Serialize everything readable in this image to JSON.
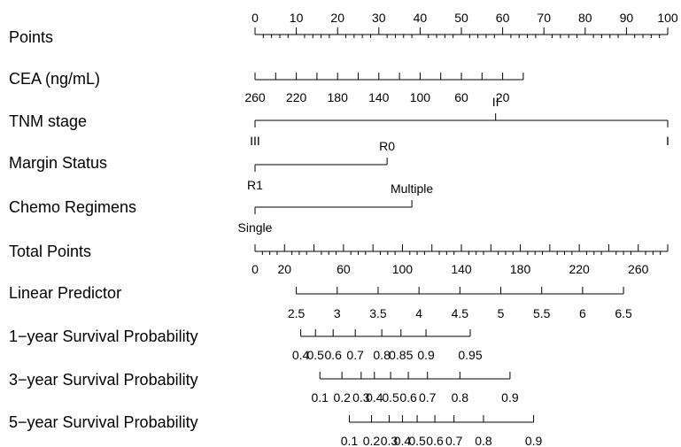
{
  "chart_data": {
    "type": "nomogram",
    "rows": [
      {
        "key": "points",
        "label": "Points",
        "min": 0,
        "max": 100,
        "labels": [
          0,
          10,
          20,
          30,
          40,
          50,
          60,
          70,
          80,
          90,
          100
        ],
        "minor_step": 2,
        "label_side": "above"
      },
      {
        "key": "cea",
        "label": "CEA (ng/mL)",
        "min": 0,
        "max": 260,
        "reversed": true,
        "labels": [
          260,
          220,
          180,
          140,
          100,
          60,
          20
        ],
        "ticks": [
          260,
          240,
          220,
          200,
          180,
          160,
          140,
          120,
          100,
          80,
          60,
          40,
          20,
          0
        ],
        "label_side": "below"
      },
      {
        "key": "tnm",
        "label": "TNM stage",
        "categorical": true,
        "levels": [
          {
            "label": "III",
            "points": 0,
            "side": "below"
          },
          {
            "label": "II",
            "points": 58.3,
            "side": "above"
          },
          {
            "label": "I",
            "points": 100,
            "side": "below"
          }
        ]
      },
      {
        "key": "margin",
        "label": "Margin Status",
        "categorical": true,
        "levels": [
          {
            "label": "R1",
            "points": 0,
            "side": "below"
          },
          {
            "label": "R0",
            "points": 32,
            "side": "above"
          }
        ]
      },
      {
        "key": "chemo",
        "label": "Chemo Regimens",
        "categorical": true,
        "levels": [
          {
            "label": "Single",
            "points": 0,
            "side": "below"
          },
          {
            "label": "Multiple",
            "points": 38,
            "side": "above"
          }
        ]
      },
      {
        "key": "total",
        "label": "Total Points",
        "min": 0,
        "max": 280,
        "labels": [
          0,
          20,
          60,
          100,
          140,
          180,
          220,
          260
        ],
        "minor_step": 5,
        "label_side": "below"
      },
      {
        "key": "lp",
        "label": "Linear Predictor",
        "min": 2.5,
        "max": 6.5,
        "labels": [
          "2.5",
          "3",
          "3.5",
          "4",
          "4.5",
          "5",
          "5.5",
          "6",
          "6.5"
        ],
        "label_side": "below"
      },
      {
        "key": "surv1",
        "label": "1−year Survival Probability",
        "ticks": [
          {
            "value": "0.4",
            "total": 31
          },
          {
            "value": "0.5",
            "total": 41
          },
          {
            "value": "0.6",
            "total": 53
          },
          {
            "value": "0.7",
            "total": 68
          },
          {
            "value": "0.8",
            "total": 86
          },
          {
            "value": "0.85",
            "total": 99
          },
          {
            "value": "0.9",
            "total": 116
          },
          {
            "value": "0.95",
            "total": 146
          }
        ],
        "label_side": "below"
      },
      {
        "key": "surv3",
        "label": "3−year Survival Probability",
        "ticks": [
          {
            "value": "0.1",
            "total": 44
          },
          {
            "value": "0.2",
            "total": 59
          },
          {
            "value": "0.3",
            "total": 72
          },
          {
            "value": "0.4",
            "total": 81
          },
          {
            "value": "0.5",
            "total": 92
          },
          {
            "value": "0.6",
            "total": 104
          },
          {
            "value": "0.7",
            "total": 117
          },
          {
            "value": "0.8",
            "total": 139
          },
          {
            "value": "0.9",
            "total": 173
          }
        ],
        "label_side": "below"
      },
      {
        "key": "surv5",
        "label": "5−year Survival Probability",
        "ticks": [
          {
            "value": "0.1",
            "total": 64
          },
          {
            "value": "0.2",
            "total": 79
          },
          {
            "value": "0.3",
            "total": 91
          },
          {
            "value": "0.4",
            "total": 100
          },
          {
            "value": "0.5",
            "total": 110
          },
          {
            "value": "0.6",
            "total": 122
          },
          {
            "value": "0.7",
            "total": 135
          },
          {
            "value": "0.8",
            "total": 155
          },
          {
            "value": "0.9",
            "total": 189
          }
        ],
        "label_side": "below"
      }
    ]
  }
}
